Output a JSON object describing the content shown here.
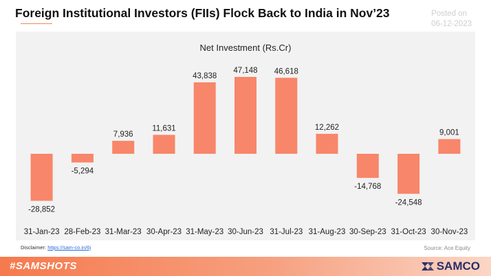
{
  "header": {
    "title": "Foreign Institutional Investors (FIIs) Flock Back to India in Nov’23",
    "posted_label": "Posted on",
    "posted_date": "06-12-2023"
  },
  "chart_data": {
    "type": "bar",
    "title": "Net Investment (Rs.Cr)",
    "categories": [
      "31-Jan-23",
      "28-Feb-23",
      "31-Mar-23",
      "30-Apr-23",
      "31-May-23",
      "30-Jun-23",
      "31-Jul-23",
      "31-Aug-23",
      "30-Sep-23",
      "31-Oct-23",
      "30-Nov-23"
    ],
    "values": [
      -28852,
      -5294,
      7936,
      11631,
      43838,
      47148,
      46618,
      12262,
      -14768,
      -24548,
      9001
    ],
    "value_labels": [
      "-28,852",
      "-5,294",
      "7,936",
      "11,631",
      "43,838",
      "47,148",
      "46,618",
      "12,262",
      "-14,768",
      "-24,548",
      "9,001"
    ],
    "bar_color": "#f8866a",
    "grid": false,
    "legend": "none"
  },
  "footer": {
    "disclaimer_label": "Disclaimer:",
    "disclaimer_link": "https://sam-co.in/6j",
    "source": "Source: Ace Equity",
    "hashtag": "#SAMSHOTS",
    "brand": "SAMCO"
  },
  "colors": {
    "accent": "#f57a4d",
    "brand_navy": "#2a2e6a",
    "panel_bg": "#f2f2f2"
  }
}
